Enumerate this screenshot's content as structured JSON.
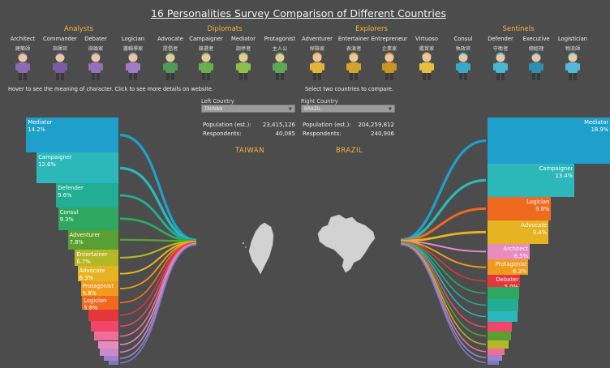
{
  "title": "16 Personalities Survey Comparison of Different Countries",
  "groups": [
    {
      "name": "Analysts",
      "color": "#f2b53c"
    },
    {
      "name": "Diplomats",
      "color": "#f2b53c"
    },
    {
      "name": "Explorers",
      "color": "#f2b53c"
    },
    {
      "name": "Sentinels",
      "color": "#f2b53c"
    }
  ],
  "types": [
    {
      "name": "Architect",
      "cjk": "建築師",
      "color": "#8a6bb0"
    },
    {
      "name": "Commander",
      "cjk": "指揮官",
      "color": "#7b5aa6"
    },
    {
      "name": "Debater",
      "cjk": "辯論家",
      "color": "#9470b8"
    },
    {
      "name": "Logician",
      "cjk": "邏輯學家",
      "color": "#a07cc4"
    },
    {
      "name": "Advocate",
      "cjk": "提倡者",
      "color": "#4f9a58"
    },
    {
      "name": "Campaigner",
      "cjk": "競選者",
      "color": "#6ab04a"
    },
    {
      "name": "Mediator",
      "cjk": "調停者",
      "color": "#8cc04a"
    },
    {
      "name": "Protagonist",
      "cjk": "主人公",
      "color": "#5ca85a"
    },
    {
      "name": "Adventurer",
      "cjk": "探險家",
      "color": "#e2b43a"
    },
    {
      "name": "Entertainer",
      "cjk": "表演者",
      "color": "#d4a22e"
    },
    {
      "name": "Entrepreneur",
      "cjk": "企業家",
      "color": "#c99426"
    },
    {
      "name": "Virtuoso",
      "cjk": "鑑賞家",
      "color": "#e8be40"
    },
    {
      "name": "Consul",
      "cjk": "執政官",
      "color": "#3aa8c8"
    },
    {
      "name": "Defender",
      "cjk": "守衛者",
      "color": "#4ab6d2"
    },
    {
      "name": "Executive",
      "cjk": "總經理",
      "color": "#2e90b4"
    },
    {
      "name": "Logistician",
      "cjk": "物流師",
      "color": "#56b8d8"
    }
  ],
  "hints": {
    "left": "Hover to see the meaning of character.   Click to see more details on website.",
    "right": "Select two countries to compare."
  },
  "left_country": {
    "label": "Left Country",
    "selected": "TAIWAN",
    "name": "TAIWAN",
    "population_label": "Population (est.):",
    "population": "23,415,126",
    "respondents_label": "Respondents:",
    "respondents": "40,085"
  },
  "right_country": {
    "label": "Right Country",
    "selected": "BRAZIL",
    "name": "BRAZIL",
    "population_label": "Population (est.):",
    "population": "204,259,812",
    "respondents_label": "Respondents:",
    "respondents": "240,906"
  },
  "colors": {
    "background": "#4c4c4c",
    "accent": "#f2b53c",
    "map": "#d2d2d2"
  },
  "chart_data": {
    "type": "bar",
    "left": [
      {
        "type": "Mediator",
        "value": 14.2,
        "label": "14.2%",
        "color": "#1f9fcc"
      },
      {
        "type": "Campaigner",
        "value": 12.6,
        "label": "12.6%",
        "color": "#2cb8bb"
      },
      {
        "type": "Defender",
        "value": 9.6,
        "label": "9.6%",
        "color": "#22ae92"
      },
      {
        "type": "Consul",
        "value": 9.3,
        "label": "9.3%",
        "color": "#2ea860"
      },
      {
        "type": "Adventurer",
        "value": 7.8,
        "label": "7.8%",
        "color": "#5a9f32"
      },
      {
        "type": "Entertainer",
        "value": 6.7,
        "label": "6.7%",
        "color": "#b4b826"
      },
      {
        "type": "Advocate",
        "value": 6.3,
        "label": "6.3%",
        "color": "#e6b422"
      },
      {
        "type": "Protagonist",
        "value": 5.8,
        "label": "5.8%",
        "color": "#f09a1e"
      },
      {
        "type": "Logician",
        "value": 5.6,
        "label": "5.6%",
        "color": "#ef6a1e"
      },
      {
        "type": "",
        "value": 4.6,
        "label": "",
        "color": "#e5363a"
      },
      {
        "type": "",
        "value": 4.3,
        "label": "",
        "color": "#f2456a"
      },
      {
        "type": "",
        "value": 3.8,
        "label": "",
        "color": "#ef6e98"
      },
      {
        "type": "",
        "value": 3.1,
        "label": "",
        "color": "#e88cc0"
      },
      {
        "type": "",
        "value": 2.9,
        "label": "",
        "color": "#c989cc"
      },
      {
        "type": "",
        "value": 2.2,
        "label": "",
        "color": "#9e84d0"
      },
      {
        "type": "",
        "value": 1.5,
        "label": "",
        "color": "#8077c4"
      }
    ],
    "right": [
      {
        "type": "Mediator",
        "value": 18.9,
        "label": "18.9%",
        "color": "#1f9fcc"
      },
      {
        "type": "Campaigner",
        "value": 13.4,
        "label": "13.4%",
        "color": "#2cb8bb"
      },
      {
        "type": "Logician",
        "value": 9.8,
        "label": "9.8%",
        "color": "#ef6a1e"
      },
      {
        "type": "Advocate",
        "value": 9.4,
        "label": "9.4%",
        "color": "#e6b422"
      },
      {
        "type": "Architect",
        "value": 6.5,
        "label": "6.5%",
        "color": "#e88cc0"
      },
      {
        "type": "Protagonist",
        "value": 6.3,
        "label": "6.3%",
        "color": "#f09a1e"
      },
      {
        "type": "Debater",
        "value": 5.0,
        "label": "5.0%",
        "color": "#e5363a"
      },
      {
        "type": "",
        "value": 4.9,
        "label": "",
        "color": "#2ea860"
      },
      {
        "type": "",
        "value": 4.8,
        "label": "",
        "color": "#22ae92"
      },
      {
        "type": "",
        "value": 4.6,
        "label": "",
        "color": "#2cb8bb"
      },
      {
        "type": "",
        "value": 3.8,
        "label": "",
        "color": "#f2456a"
      },
      {
        "type": "",
        "value": 3.6,
        "label": "",
        "color": "#5a9f32"
      },
      {
        "type": "",
        "value": 3.3,
        "label": "",
        "color": "#b4b826"
      },
      {
        "type": "",
        "value": 2.6,
        "label": "",
        "color": "#ef6e98"
      },
      {
        "type": "",
        "value": 2.3,
        "label": "",
        "color": "#9e84d0"
      },
      {
        "type": "",
        "value": 1.8,
        "label": "",
        "color": "#8077c4"
      }
    ]
  }
}
